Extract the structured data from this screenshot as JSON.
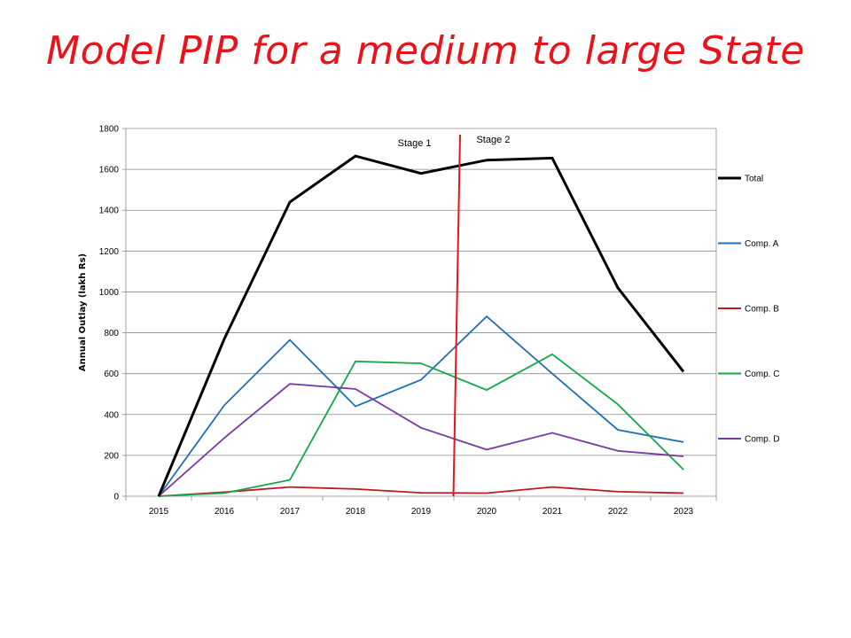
{
  "slide": {
    "title": "Model PIP for a medium to large State"
  },
  "chart_data": {
    "type": "line",
    "title": "",
    "xlabel": "",
    "ylabel": "Annual Outlay (lakh Rs)",
    "ylim": [
      0,
      1800
    ],
    "yticks": [
      0,
      200,
      400,
      600,
      800,
      1000,
      1200,
      1400,
      1600,
      1800
    ],
    "grid": true,
    "legend_position": "right",
    "x": [
      "2015",
      "2016",
      "2017",
      "2018",
      "2019",
      "2020",
      "2021",
      "2022",
      "2023"
    ],
    "series": [
      {
        "name": "Total",
        "color": "#000000",
        "values": [
          0,
          770,
          1440,
          1665,
          1580,
          1645,
          1655,
          1020,
          610
        ]
      },
      {
        "name": "Comp. A",
        "color": "#1f6fb5",
        "values": [
          0,
          445,
          765,
          440,
          570,
          880,
          600,
          325,
          265
        ]
      },
      {
        "name": "Comp. B",
        "color": "#c0191e",
        "values": [
          0,
          20,
          45,
          35,
          17,
          15,
          45,
          22,
          15
        ]
      },
      {
        "name": "Comp. C",
        "color": "#15a84a",
        "values": [
          0,
          15,
          80,
          660,
          650,
          520,
          695,
          450,
          130
        ]
      },
      {
        "name": "Comp. D",
        "color": "#7b3aa0",
        "values": [
          0,
          285,
          550,
          525,
          335,
          228,
          310,
          222,
          195
        ]
      }
    ],
    "annotations": [
      {
        "text": "Stage 1"
      },
      {
        "text": "Stage 2"
      }
    ],
    "divider_color": "#e8141b"
  }
}
